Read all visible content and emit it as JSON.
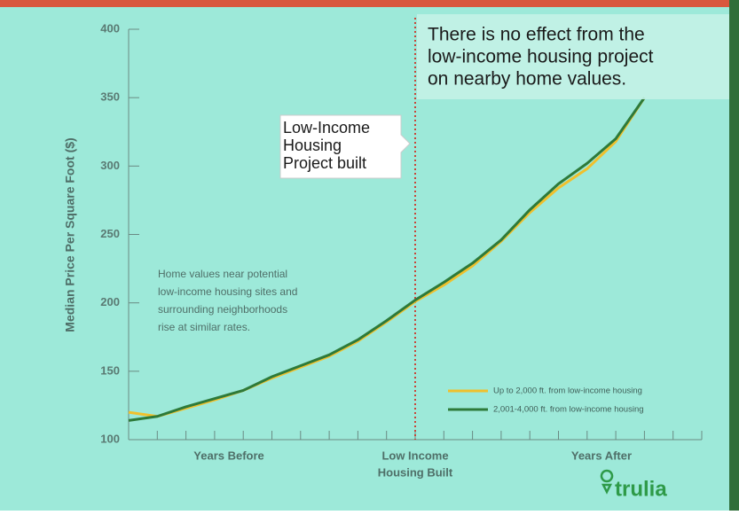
{
  "chart_data": {
    "type": "line",
    "ylabel": "Median Price Per Square Foot ($)",
    "xlim": [
      0,
      20
    ],
    "xticks": [
      0,
      1,
      2,
      3,
      4,
      5,
      6,
      7,
      8,
      9,
      10,
      11,
      12,
      13,
      14,
      15,
      16,
      17,
      18,
      19,
      20
    ],
    "x_labels": [
      {
        "value": 3.5,
        "label": [
          "Years Before"
        ]
      },
      {
        "value": 10,
        "label": [
          "Low Income",
          "Housing Built"
        ]
      },
      {
        "value": 16.5,
        "label": [
          "Years After"
        ]
      }
    ],
    "x": [
      0,
      1,
      2,
      3,
      4,
      5,
      6,
      7,
      8,
      9,
      10,
      11,
      12,
      13,
      14,
      15,
      16,
      17,
      18
    ],
    "ylim": [
      100,
      400
    ],
    "yticks": [
      100,
      150,
      200,
      250,
      300,
      350,
      400
    ],
    "series": [
      {
        "name": "Up to 2,000 ft. from low-income housing",
        "color": "#f0c02c",
        "values": [
          120,
          117,
          123,
          129,
          136,
          145,
          153,
          161,
          172,
          186,
          201,
          213,
          227,
          245,
          266,
          284,
          298,
          318,
          350
        ]
      },
      {
        "name": "2,001-4,000 ft. from low-income housing",
        "color": "#2d7a3a",
        "values": [
          114,
          117,
          124,
          130,
          136,
          146,
          154,
          162,
          173,
          187,
          202,
          215,
          229,
          246,
          268,
          287,
          302,
          320,
          350
        ]
      }
    ],
    "event_x": 10,
    "annotations": {
      "headline": [
        "There is no effect from the",
        "low-income housing project",
        "on nearby home values."
      ],
      "callout": [
        "Low-Income",
        "Housing",
        "Project built"
      ],
      "note": [
        "Home values near potential",
        "low-income housing sites and",
        "surrounding neighborhoods",
        "rise at similar rates."
      ]
    },
    "brand": "trulia"
  }
}
